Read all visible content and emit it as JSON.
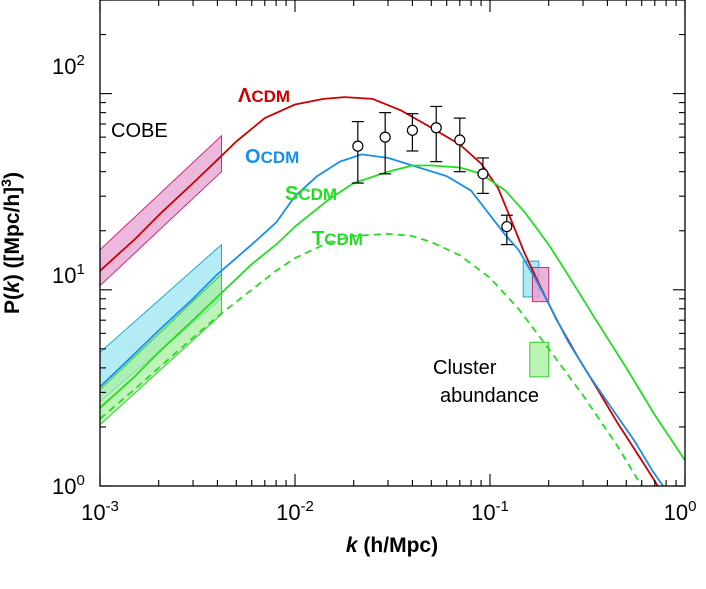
{
  "chart_data": {
    "type": "line",
    "x_scale": "log",
    "y_scale": "log",
    "xlim": [
      0.001,
      1.0
    ],
    "ylim": [
      1,
      300
    ],
    "x_axis_title": {
      "italic_part": "k",
      "rest": " (h/Mpc)"
    },
    "y_axis_title": {
      "prefix": "P(",
      "italic_part": "k",
      "middle": ") ([Mpc/h]",
      "sup": "3",
      "suffix": ")"
    },
    "x_ticks": [
      {
        "value": 0.001,
        "base": "10",
        "exp": "-3"
      },
      {
        "value": 0.01,
        "base": "10",
        "exp": "-2"
      },
      {
        "value": 0.1,
        "base": "10",
        "exp": "-1"
      },
      {
        "value": 1.0,
        "base": "10",
        "exp": "0"
      }
    ],
    "y_ticks": [
      {
        "value": 1,
        "base": "10",
        "exp": "0"
      },
      {
        "value": 10,
        "base": "10",
        "exp": "1"
      },
      {
        "value": 100,
        "base": "10",
        "exp": "2"
      }
    ],
    "colors": {
      "lcdm": "#cc0000",
      "ocdm": "#1a8fe6",
      "scdm": "#22dd22",
      "tcdm": "#22dd22",
      "cobe_fill": "#e6a0d2",
      "cobe_edge": "#cc2a7a",
      "cyan_fill": "#99e6f0",
      "cyan_edge": "#22aacc",
      "green_fill": "#aaf0a0",
      "green_edge": "#33cc33",
      "axis": "#000000"
    },
    "series": [
      {
        "name": "ΛCDM",
        "key": "lcdm",
        "dash": false,
        "points": [
          [
            0.001,
            12.5
          ],
          [
            0.0015,
            18
          ],
          [
            0.002,
            24
          ],
          [
            0.003,
            35
          ],
          [
            0.004,
            46
          ],
          [
            0.005,
            57
          ],
          [
            0.007,
            75
          ],
          [
            0.01,
            88
          ],
          [
            0.014,
            94
          ],
          [
            0.018,
            96
          ],
          [
            0.025,
            94
          ],
          [
            0.035,
            82
          ],
          [
            0.05,
            67
          ],
          [
            0.07,
            55
          ],
          [
            0.09,
            44
          ],
          [
            0.11,
            33
          ],
          [
            0.13,
            22
          ],
          [
            0.15,
            15.5
          ],
          [
            0.18,
            10.5
          ],
          [
            0.22,
            7
          ],
          [
            0.28,
            4.6
          ],
          [
            0.35,
            3.2
          ],
          [
            0.45,
            2.1
          ],
          [
            0.6,
            1.35
          ],
          [
            0.75,
            0.95
          ]
        ]
      },
      {
        "name": "OCDM",
        "key": "ocdm",
        "dash": false,
        "points": [
          [
            0.001,
            3.2
          ],
          [
            0.0015,
            4.7
          ],
          [
            0.002,
            6.2
          ],
          [
            0.003,
            9
          ],
          [
            0.004,
            12
          ],
          [
            0.006,
            17
          ],
          [
            0.008,
            22
          ],
          [
            0.01,
            30
          ],
          [
            0.013,
            38
          ],
          [
            0.017,
            45
          ],
          [
            0.022,
            49
          ],
          [
            0.03,
            47
          ],
          [
            0.04,
            43
          ],
          [
            0.06,
            38
          ],
          [
            0.08,
            32
          ],
          [
            0.1,
            24
          ],
          [
            0.12,
            19
          ],
          [
            0.14,
            16
          ],
          [
            0.17,
            11.5
          ],
          [
            0.2,
            8.5
          ],
          [
            0.25,
            5.5
          ],
          [
            0.32,
            3.7
          ],
          [
            0.42,
            2.5
          ],
          [
            0.55,
            1.7
          ],
          [
            0.68,
            1.2
          ],
          [
            0.8,
            0.95
          ]
        ]
      },
      {
        "name": "SCDM",
        "key": "scdm",
        "dash": false,
        "points": [
          [
            0.001,
            2.5
          ],
          [
            0.0015,
            3.6
          ],
          [
            0.002,
            4.8
          ],
          [
            0.003,
            7
          ],
          [
            0.004,
            9.2
          ],
          [
            0.006,
            13.5
          ],
          [
            0.008,
            17
          ],
          [
            0.01,
            21
          ],
          [
            0.015,
            29
          ],
          [
            0.02,
            35
          ],
          [
            0.03,
            40
          ],
          [
            0.04,
            43
          ],
          [
            0.05,
            43
          ],
          [
            0.07,
            42
          ],
          [
            0.09,
            39
          ],
          [
            0.12,
            32
          ],
          [
            0.15,
            25
          ],
          [
            0.2,
            17
          ],
          [
            0.25,
            12
          ],
          [
            0.35,
            7
          ],
          [
            0.5,
            4
          ],
          [
            0.7,
            2.3
          ],
          [
            1.0,
            1.35
          ]
        ]
      },
      {
        "name": "TCDM",
        "key": "tcdm",
        "dash": true,
        "points": [
          [
            0.001,
            2.2
          ],
          [
            0.0015,
            3.1
          ],
          [
            0.002,
            4.0
          ],
          [
            0.003,
            5.7
          ],
          [
            0.004,
            7.3
          ],
          [
            0.006,
            10
          ],
          [
            0.008,
            12.5
          ],
          [
            0.01,
            14.5
          ],
          [
            0.015,
            17.5
          ],
          [
            0.02,
            18.8
          ],
          [
            0.03,
            19.3
          ],
          [
            0.04,
            18.8
          ],
          [
            0.05,
            17.5
          ],
          [
            0.07,
            15
          ],
          [
            0.1,
            11.5
          ],
          [
            0.14,
            8
          ],
          [
            0.2,
            5
          ],
          [
            0.3,
            2.9
          ],
          [
            0.45,
            1.6
          ],
          [
            0.55,
            1.15
          ],
          [
            0.6,
            1.0
          ]
        ]
      }
    ],
    "data_points": [
      {
        "k": 0.021,
        "p": 54,
        "lo": 35,
        "hi": 72
      },
      {
        "k": 0.029,
        "p": 60,
        "lo": 39,
        "hi": 80
      },
      {
        "k": 0.04,
        "p": 65,
        "lo": 51,
        "hi": 79
      },
      {
        "k": 0.053,
        "p": 67,
        "lo": 45,
        "hi": 86
      },
      {
        "k": 0.07,
        "p": 58,
        "lo": 40,
        "hi": 75
      },
      {
        "k": 0.092,
        "p": 39,
        "lo": 31,
        "hi": 47
      },
      {
        "k": 0.122,
        "p": 21,
        "lo": 17,
        "hi": 24
      }
    ],
    "bands": [
      {
        "name": "COBE ΛCDM",
        "key": "cobe",
        "k0": 0.001,
        "k1": 0.0042,
        "lo0": 10.5,
        "hi0": 16,
        "lo1": 40,
        "hi1": 61
      },
      {
        "name": "COBE OCDM",
        "key": "cyan",
        "k0": 0.001,
        "k1": 0.0042,
        "lo0": 2.7,
        "hi0": 4.8,
        "lo1": 9,
        "hi1": 17
      },
      {
        "name": "COBE SCDM/TCDM",
        "key": "green",
        "k0": 0.001,
        "k1": 0.0042,
        "lo0": 2.05,
        "hi0": 3.1,
        "lo1": 7.5,
        "hi1": 12
      }
    ],
    "boxes": [
      {
        "name": "cluster-cyan",
        "key": "cyan",
        "k0": 0.148,
        "k1": 0.178,
        "p0": 9.2,
        "p1": 14.0
      },
      {
        "name": "cluster-pink",
        "key": "cobe",
        "k0": 0.165,
        "k1": 0.2,
        "p0": 8.7,
        "p1": 13.0
      },
      {
        "name": "cluster-legend-green",
        "key": "green",
        "k0": 0.16,
        "k1": 0.2,
        "p0": 3.6,
        "p1": 5.4
      }
    ],
    "labels": {
      "lcdm": {
        "sym": "Λ",
        "rest": "CDM"
      },
      "ocdm": {
        "sym": "O",
        "rest": "CDM"
      },
      "scdm": {
        "sym": "S",
        "rest": "CDM"
      },
      "tcdm": {
        "sym": "T",
        "rest": "CDM"
      },
      "cobe": "COBE",
      "cluster_line1": "Cluster",
      "cluster_line2": "abundance"
    }
  }
}
